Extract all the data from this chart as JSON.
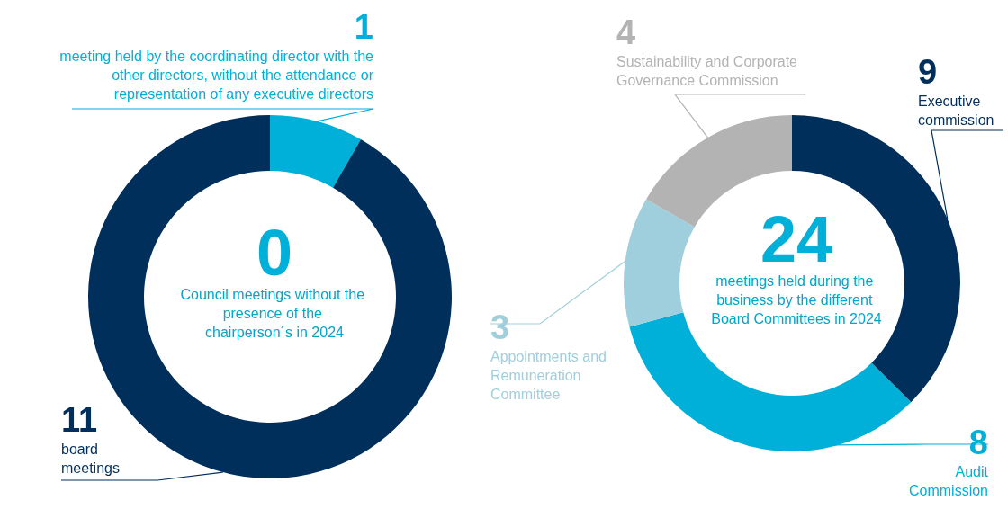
{
  "chart_data": [
    {
      "type": "donut",
      "title": "0",
      "subtitle": "Council meetings without the presence of the chairperson´s in 2024",
      "categories": [
        "meeting held by the coordinating director with the other directors, without the attendance or representation of any executive directors",
        "board meetings"
      ],
      "values": [
        1,
        11
      ],
      "colors": [
        "#00b0d8",
        "#002f5c"
      ],
      "data_labels": true
    },
    {
      "type": "donut",
      "title": "24",
      "subtitle": "meetings held during the business by the different Board Committees in 2024",
      "categories": [
        "Executive commission",
        "Audit Commission",
        "Appointments and Remuneration Committee",
        "Sustainability and Corporate Governance Commission"
      ],
      "values": [
        9,
        8,
        3,
        4
      ],
      "colors": [
        "#002f5c",
        "#00b0d8",
        "#9fcfdc",
        "#b3b3b3"
      ],
      "data_labels": true
    }
  ]
}
